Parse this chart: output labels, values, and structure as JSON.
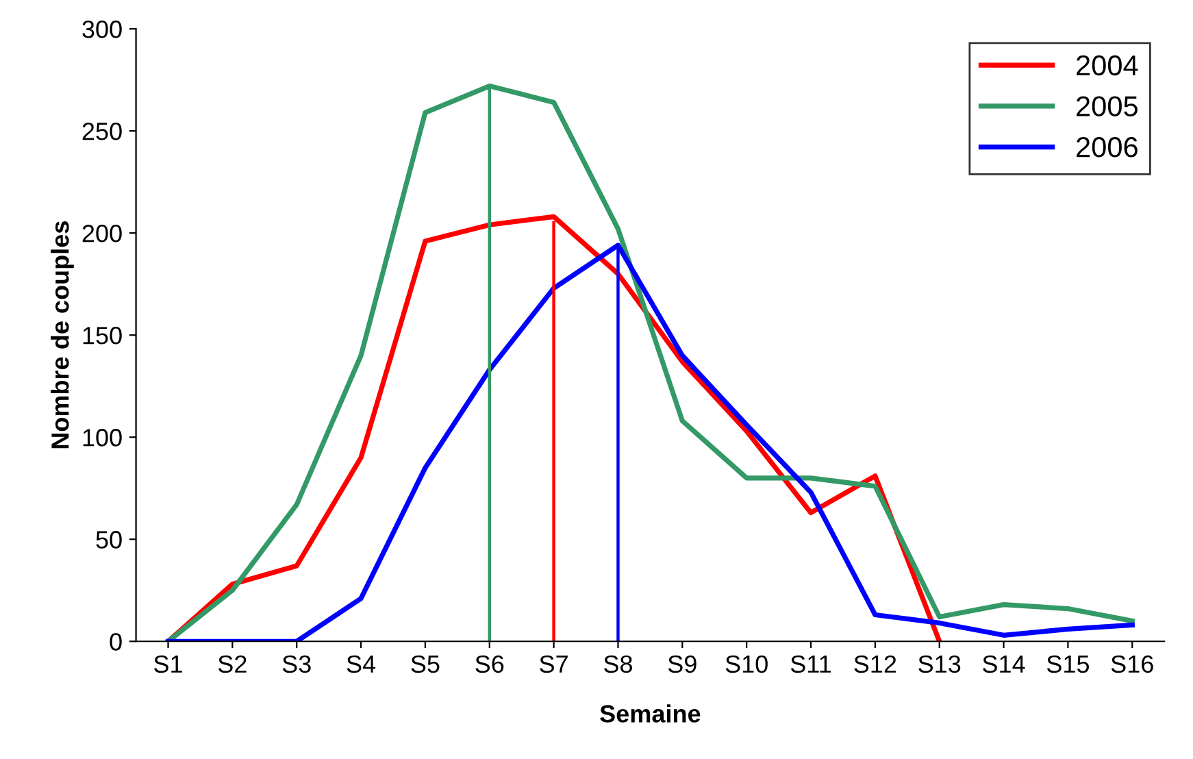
{
  "chart_data": {
    "type": "line",
    "xlabel": "Semaine",
    "ylabel": "Nombre de couples",
    "categories": [
      "S1",
      "S2",
      "S3",
      "S4",
      "S5",
      "S6",
      "S7",
      "S8",
      "S9",
      "S10",
      "S11",
      "S12",
      "S13",
      "S14",
      "S15",
      "S16"
    ],
    "series": [
      {
        "name": "2004",
        "color": "#ff0000",
        "values": [
          0,
          28,
          37,
          90,
          196,
          204,
          208,
          180,
          137,
          103,
          63,
          81,
          0,
          null,
          null,
          null
        ]
      },
      {
        "name": "2005",
        "color": "#339966",
        "values": [
          0,
          25,
          67,
          140,
          259,
          272,
          264,
          202,
          108,
          80,
          80,
          76,
          12,
          18,
          16,
          10
        ]
      },
      {
        "name": "2006",
        "color": "#0000ff",
        "values": [
          0,
          0,
          0,
          21,
          85,
          133,
          173,
          194,
          140,
          106,
          73,
          13,
          9,
          3,
          6,
          8
        ]
      },
      {
        "color": "#339966",
        "x": [
          "S6",
          "S6"
        ],
        "values": [
          0,
          270
        ],
        "line_style": "solid"
      },
      {
        "color": "#ff0000",
        "x": [
          "S7",
          "S7"
        ],
        "values": [
          0,
          205
        ],
        "line_style": "solid"
      },
      {
        "color": "#0000ff",
        "x": [
          "S8",
          "S8"
        ],
        "values": [
          0,
          194
        ],
        "line_style": "solid"
      }
    ],
    "ylim": [
      0,
      300
    ],
    "yticks": [
      0,
      50,
      100,
      150,
      200,
      250,
      300
    ],
    "grid": false,
    "legend": "top right",
    "marker": "none"
  }
}
